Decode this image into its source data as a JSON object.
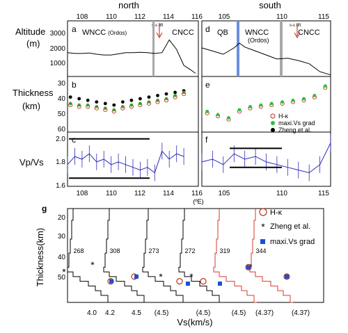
{
  "header": {
    "left": "north",
    "right": "south",
    "lon_unit": "(ºE)"
  },
  "axes_labels": {
    "altitude": "Altitude",
    "altitude_unit": "(m)",
    "thickness": "Thickness",
    "thickness_unit": "(km)",
    "vpvs": "Vp/Vs",
    "g_y": "Thickness(km)",
    "g_x": "Vs(km/s)"
  },
  "panel_labels": {
    "a": "a",
    "b": "b",
    "c": "c",
    "d": "d",
    "e": "e",
    "f": "f",
    "g": "g"
  },
  "region_labels": {
    "wncc_a": "WNCC",
    "ordos_a": "(Ordos)",
    "cncc_a": "CNCC",
    "qb": "QB",
    "wncc_d": "WNCC",
    "ordos_d": "(Ordos)",
    "cncc_d": "CNCC",
    "rift": "s-s rift"
  },
  "legend_be": [
    "H-κ",
    "maxi.Vs grad",
    "Zheng et al."
  ],
  "legend_g": [
    "H-κ",
    "Zheng et al.",
    "maxi.Vs grad"
  ],
  "colors": {
    "hk": "#b5341a",
    "maxvs": "#27c23a",
    "zheng": "#000000",
    "vpvs": "#2b2bb8",
    "marker_blue": "#1a4fd6",
    "red_profile": "#d63a2a",
    "grey_band": "#a8a8a8",
    "blue_band": "#6a8fe0"
  },
  "chart_data": [
    {
      "id": "a",
      "type": "line",
      "title": "",
      "x_label": "(ºE)",
      "y_label": "Altitude (m)",
      "xlim": [
        107,
        116
      ],
      "ylim": [
        0,
        3500
      ],
      "x_ticks": [
        108,
        110,
        112,
        114,
        116
      ],
      "y_ticks": [
        1000,
        2000,
        3000
      ],
      "series": [
        {
          "name": "north",
          "x": [
            107.0,
            107.5,
            108.0,
            108.5,
            109.0,
            109.5,
            110.0,
            110.5,
            111.0,
            111.5,
            112.0,
            112.5,
            113.0,
            113.5,
            114.0,
            114.5,
            115.0,
            115.5,
            115.8
          ],
          "values": [
            1500,
            1450,
            1450,
            1480,
            1400,
            1350,
            1350,
            1420,
            1500,
            1500,
            1520,
            1500,
            1450,
            1500,
            2300,
            1700,
            700,
            400,
            200
          ]
        }
      ]
    },
    {
      "id": "d",
      "type": "line",
      "title": "",
      "xlim": [
        103,
        115
      ],
      "ylim": [
        0,
        3500
      ],
      "x_ticks": [
        105,
        110,
        115
      ],
      "series": [
        {
          "name": "south",
          "x": [
            103.0,
            104.0,
            105.0,
            106.0,
            106.5,
            107.0,
            108.0,
            109.0,
            110.0,
            111.0,
            112.0,
            113.0,
            114.0,
            115.0
          ],
          "values": [
            1800,
            1600,
            1400,
            1800,
            2100,
            1850,
            1600,
            1350,
            1100,
            1150,
            1000,
            800,
            300,
            100
          ]
        }
      ]
    },
    {
      "id": "b",
      "type": "scatter",
      "title": "",
      "y_label": "Thickness (km)",
      "xlim": [
        107,
        116
      ],
      "ylim": [
        60,
        25
      ],
      "y_ticks": [
        30,
        40,
        50,
        60
      ],
      "series": [
        {
          "name": "Zheng et al.",
          "x": [
            107.2,
            107.8,
            108.4,
            109.0,
            109.6,
            110.2,
            110.8,
            111.4,
            112.0,
            112.6,
            113.2,
            113.8,
            114.4,
            115.0
          ],
          "values": [
            38,
            39,
            40,
            41,
            42,
            43,
            41,
            40,
            39,
            38,
            37,
            36,
            35,
            34
          ]
        },
        {
          "name": "maxi.Vs grad",
          "x": [
            107.2,
            107.8,
            108.4,
            109.0,
            109.6,
            110.2,
            110.8,
            111.4,
            112.0,
            112.6,
            113.2,
            113.8,
            114.4,
            115.0
          ],
          "values": [
            42,
            43,
            43,
            44,
            45,
            46,
            44,
            43,
            42,
            41,
            40,
            39,
            37,
            35
          ]
        },
        {
          "name": "H-κ",
          "x": [
            107.2,
            107.8,
            108.4,
            109.0,
            109.6,
            110.2,
            110.8,
            111.4,
            112.0,
            112.6,
            113.2,
            113.8,
            114.4,
            115.0
          ],
          "values": [
            43,
            44,
            44,
            45,
            46,
            47,
            45,
            44,
            43,
            42,
            41,
            40,
            38,
            36
          ]
        }
      ]
    },
    {
      "id": "e",
      "type": "scatter",
      "title": "",
      "xlim": [
        103,
        115
      ],
      "ylim": [
        60,
        25
      ],
      "series": [
        {
          "name": "H-κ",
          "x": [
            103.5,
            104.5,
            105.5,
            106.5,
            107.5,
            108.5,
            109.5,
            110.5,
            111.5,
            112.5,
            113.5,
            114.5
          ],
          "values": [
            48,
            50,
            52,
            47,
            45,
            44,
            43,
            42,
            41,
            40,
            38,
            32
          ]
        },
        {
          "name": "maxi.Vs grad",
          "x": [
            103.5,
            104.5,
            105.5,
            106.5,
            107.5,
            108.5,
            109.5,
            110.5,
            111.5,
            112.5,
            113.5,
            114.5
          ],
          "values": [
            47,
            49,
            51,
            46,
            44,
            43,
            42,
            41,
            40,
            39,
            37,
            31
          ]
        }
      ]
    },
    {
      "id": "c",
      "type": "line",
      "title": "",
      "y_label": "Vp/Vs",
      "xlim": [
        107,
        116
      ],
      "ylim": [
        1.6,
        2.0
      ],
      "x_ticks": [
        108,
        110,
        112,
        114,
        116
      ],
      "y_ticks": [
        1.6,
        1.8,
        2.0
      ],
      "series": [
        {
          "name": "Vp/Vs",
          "x": [
            107.0,
            107.5,
            108.0,
            108.5,
            109.0,
            109.5,
            110.0,
            110.5,
            111.0,
            111.5,
            112.0,
            112.5,
            113.0,
            113.5,
            114.0,
            114.5,
            115.0
          ],
          "values": [
            1.76,
            1.82,
            1.8,
            1.84,
            1.78,
            1.8,
            1.76,
            1.78,
            1.76,
            1.74,
            1.72,
            1.74,
            1.7,
            1.86,
            1.8,
            1.84,
            1.82
          ]
        }
      ],
      "bounds": [
        1.95,
        1.66
      ]
    },
    {
      "id": "f",
      "type": "line",
      "title": "",
      "xlim": [
        103,
        115
      ],
      "ylim": [
        1.6,
        2.0
      ],
      "x_ticks": [
        105,
        110,
        115
      ],
      "series": [
        {
          "name": "Vp/Vs",
          "x": [
            103.0,
            104.0,
            105.0,
            106.0,
            107.0,
            108.0,
            109.0,
            110.0,
            111.0,
            112.0,
            113.0,
            114.0,
            115.0
          ],
          "values": [
            1.78,
            1.8,
            1.76,
            1.84,
            1.8,
            1.82,
            1.78,
            1.76,
            1.74,
            1.72,
            1.7,
            1.76,
            1.92
          ]
        }
      ],
      "bounds": [
        1.88,
        1.74
      ]
    },
    {
      "id": "g",
      "type": "line",
      "title": "",
      "x_label": "Vs(km/s)",
      "y_label": "Thickness(km)",
      "ylim": [
        55,
        15
      ],
      "y_ticks": [
        20,
        30,
        40,
        50
      ],
      "x_tick_labels": [
        "4.0",
        "4.2",
        "4.5",
        "(4.5)",
        "(4.5)",
        "(4.5)",
        "(4.37)",
        "(4.37)"
      ],
      "stations": [
        "268",
        "308",
        "273",
        "272",
        "319",
        "344"
      ]
    }
  ]
}
